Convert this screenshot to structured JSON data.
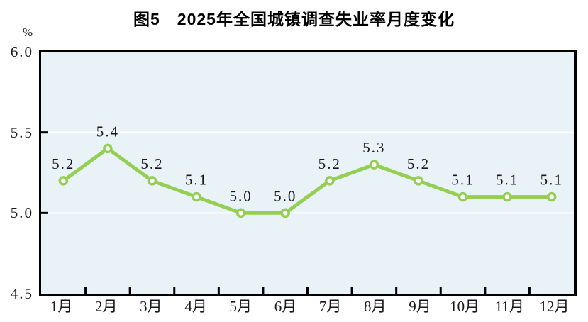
{
  "chart_data": {
    "type": "line",
    "title": "图5　2025年全国城镇调查失业率月度变化",
    "categories": [
      "1月",
      "2月",
      "3月",
      "4月",
      "5月",
      "6月",
      "7月",
      "8月",
      "9月",
      "10月",
      "11月",
      "12月"
    ],
    "series": [
      {
        "name": "全国城镇调查失业率",
        "values": [
          5.2,
          5.4,
          5.2,
          5.1,
          5.0,
          5.0,
          5.2,
          5.3,
          5.2,
          5.1,
          5.1,
          5.1
        ]
      }
    ],
    "xlabel": "",
    "ylabel": "%",
    "ylim": [
      4.5,
      6.0
    ],
    "y_tick_labels": [
      "6.0",
      "5.5",
      "5.0",
      "4.5"
    ],
    "y_tick_values": [
      6.0,
      5.5,
      5.0,
      4.5
    ],
    "grid": "horizontal gridlines at 5.5 and 5.0, white on light-blue panel",
    "legend_position": "none",
    "data_labels": "shown above each point, one decimal",
    "colors": {
      "line": "#94ce52",
      "marker_fill": "#ffffff",
      "marker_stroke": "#94ce52",
      "plot_background": "#e9f2f7",
      "gridline": "#ffffff",
      "frame": "#000000",
      "text": "#16181d",
      "title_text": "#000000"
    }
  }
}
